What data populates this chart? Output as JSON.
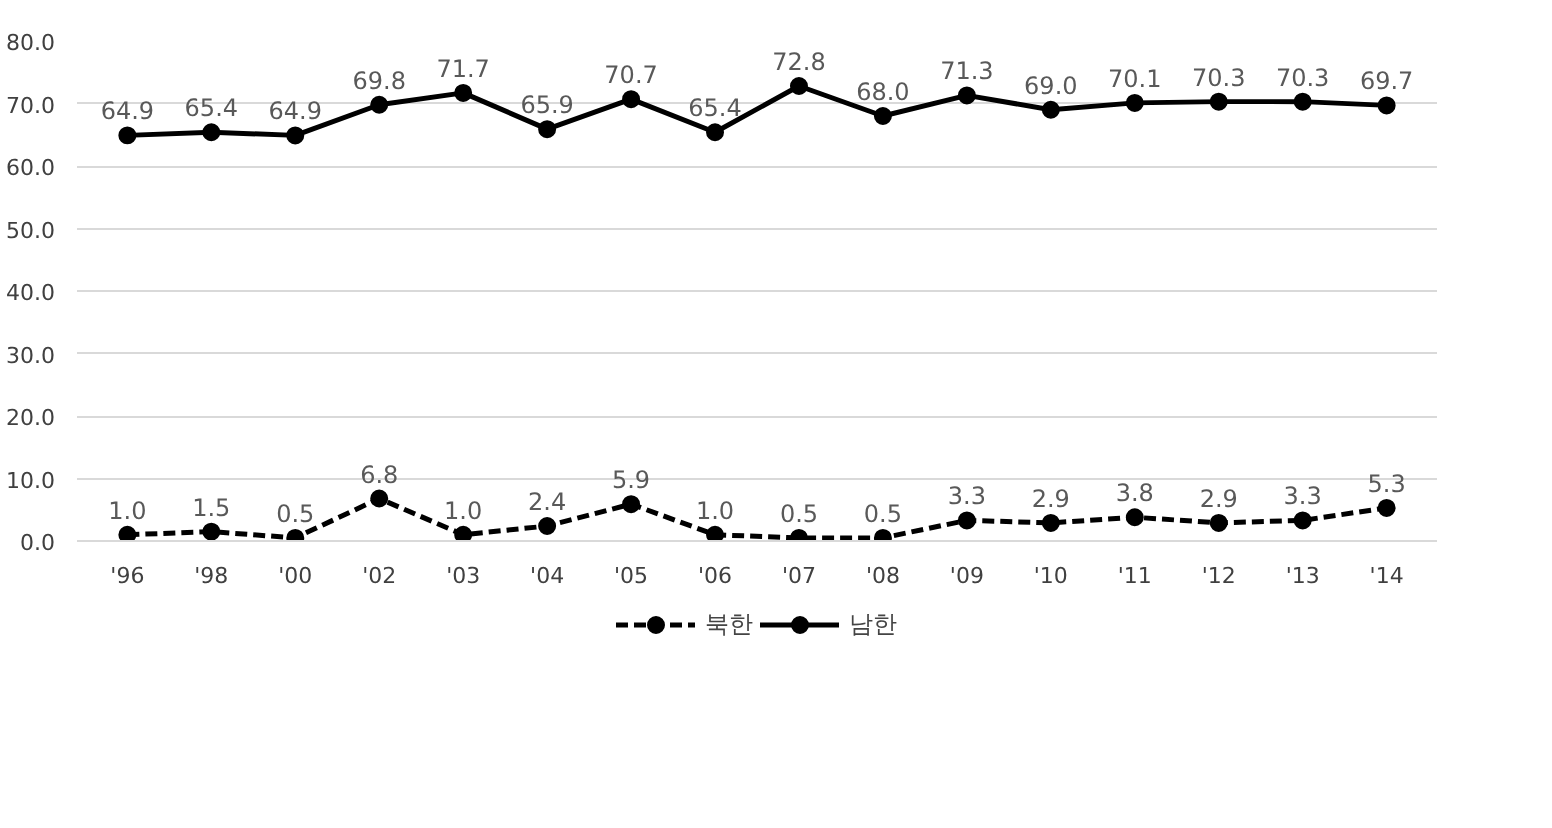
{
  "chart_data": {
    "type": "line",
    "categories": [
      "'96",
      "'98",
      "'00",
      "'02",
      "'03",
      "'04",
      "'05",
      "'06",
      "'07",
      "'08",
      "'09",
      "'10",
      "'11",
      "'12",
      "'13",
      "'14"
    ],
    "series": [
      {
        "name": "북한",
        "color": "#000000",
        "line_style": "dashed",
        "values": [
          1.0,
          1.5,
          0.5,
          6.8,
          1.0,
          2.4,
          5.9,
          1.0,
          0.5,
          0.5,
          3.3,
          2.9,
          3.8,
          2.9,
          3.3,
          5.3
        ],
        "value_labels": [
          "1.0",
          "1.5",
          "0.5",
          "6.8",
          "1.0",
          "2.4",
          "5.9",
          "1.0",
          "0.5",
          "0.5",
          "3.3",
          "2.9",
          "3.8",
          "2.9",
          "3.3",
          "5.3"
        ]
      },
      {
        "name": "남한",
        "color": "#000000",
        "line_style": "solid",
        "values": [
          64.9,
          65.4,
          64.9,
          69.8,
          71.7,
          65.9,
          70.7,
          65.4,
          72.8,
          68.0,
          71.3,
          69.0,
          70.1,
          70.3,
          70.3,
          69.7
        ],
        "value_labels": [
          "64.9",
          "65.4",
          "64.9",
          "69.8",
          "71.7",
          "65.9",
          "70.7",
          "65.4",
          "72.8",
          "68.0",
          "71.3",
          "69.0",
          "70.1",
          "70.3",
          "70.3",
          "69.7"
        ]
      }
    ],
    "ylim": [
      0,
      80
    ],
    "yticks": [
      {
        "value": 0,
        "label": "0.0"
      },
      {
        "value": 10,
        "label": "10.0"
      },
      {
        "value": 20,
        "label": "20.0"
      },
      {
        "value": 30,
        "label": "30.0"
      },
      {
        "value": 40,
        "label": "40.0"
      },
      {
        "value": 50,
        "label": "50.0"
      },
      {
        "value": 60,
        "label": "60.0"
      },
      {
        "value": 70,
        "label": "70.0"
      },
      {
        "value": 80,
        "label": "80.0"
      }
    ],
    "grid": "y",
    "legend": "bottom",
    "marker": "circle"
  }
}
